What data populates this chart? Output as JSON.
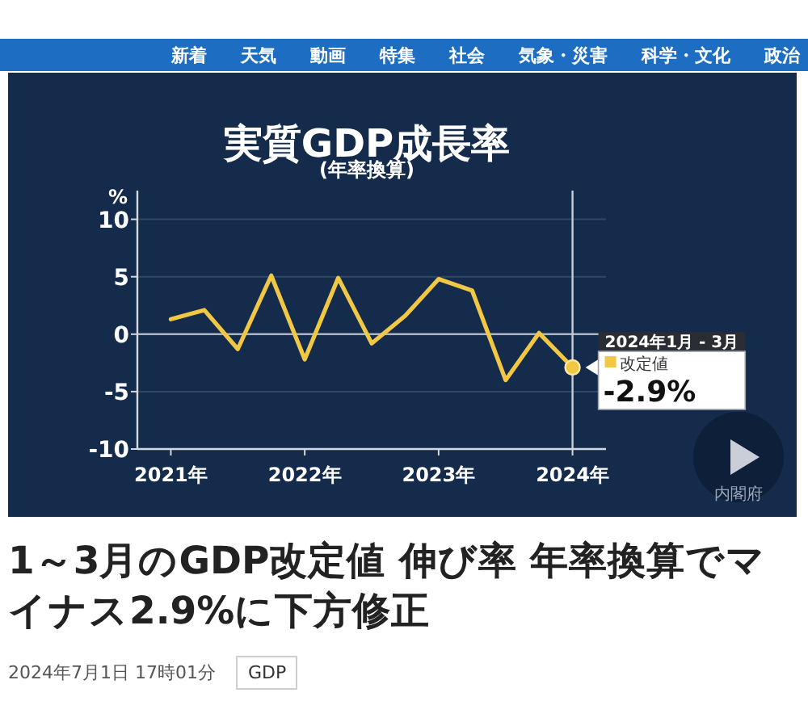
{
  "chart_data": [
    {
      "type": "other",
      "annotations": [
        "新着",
        "天気",
        "動画",
        "特集",
        "社会",
        "気象・災害",
        "科学・文化",
        "政治"
      ]
    },
    {
      "type": "line",
      "title": "実質GDP成長率",
      "subtitle": "(年率換算)",
      "ylabel": "%",
      "x": [
        "2021-01",
        "2021-04",
        "2021-07",
        "2021-10",
        "2022-01",
        "2022-04",
        "2022-07",
        "2022-10",
        "2023-01",
        "2023-04",
        "2023-07",
        "2023-10",
        "2024-01"
      ],
      "series": [
        {
          "name": "改定値",
          "color": "#f2c744",
          "values": [
            1.3,
            2.1,
            -1.3,
            5.1,
            -2.2,
            4.9,
            -0.8,
            1.6,
            4.8,
            3.8,
            -4.0,
            0.1,
            -2.9
          ],
          "value_labels": [
            null,
            null,
            null,
            null,
            null,
            null,
            null,
            null,
            null,
            null,
            null,
            null,
            "-2.9%"
          ]
        }
      ],
      "xlim": [
        "2020-10",
        "2024-04"
      ],
      "xticks": [
        {
          "value": "2021-01",
          "label": "2021年"
        },
        {
          "value": "2022-01",
          "label": "2022年"
        },
        {
          "value": "2023-01",
          "label": "2023年"
        },
        {
          "value": "2024-01",
          "label": "2024年"
        }
      ],
      "ylim": [
        -10,
        12.5
      ],
      "yticks": [
        -10,
        -5,
        0,
        5,
        10
      ],
      "grid": "y",
      "legend": "right",
      "line_style": "solid",
      "ref_lines": [
        {
          "axis": "y",
          "value": 0,
          "color": "#a9b4c4"
        },
        {
          "axis": "x",
          "value": "2024-01",
          "color": "#c9ced6"
        }
      ],
      "annotations": [
        {
          "text": "2024年1月 - 3月",
          "x": "2024-01",
          "y": -2.9
        },
        "内閣府"
      ]
    },
    {
      "type": "other",
      "title": "1～3月のGDP改定値 伸び率 年率換算でマイナス2.9%に下方修正",
      "annotations": [
        "2024年7月1日 17時01分",
        "GDP"
      ]
    }
  ]
}
